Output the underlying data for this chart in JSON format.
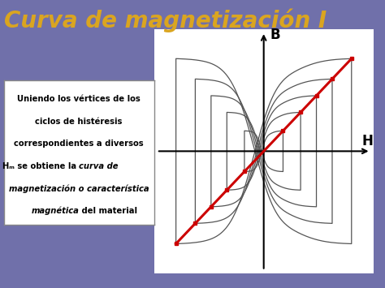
{
  "title": "Curva de magnetización I",
  "title_color": "#DAA520",
  "title_fontsize": 20,
  "bg_color": "#7070AA",
  "plot_bg_color": "#FFFFFF",
  "axis_label_B": "B",
  "axis_label_H": "H",
  "red_curve_color": "#CC0000",
  "hysteresis_color": "#555555",
  "loop_scales": [
    0.22,
    0.42,
    0.6,
    0.78,
    1.0
  ]
}
